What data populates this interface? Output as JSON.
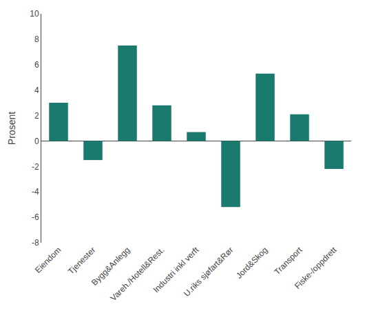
{
  "chart_data": {
    "type": "bar",
    "ylabel": "Prosent",
    "categories": [
      "Eiendom",
      "Tjenester",
      "Bygg&Anlegg",
      "Vareh./Hotell&Rest.",
      "Industri inkl verft",
      "U.riks sjøfart&Rør",
      "Jord&Skog",
      "Transport",
      "Fiske-/oppdrett"
    ],
    "values": [
      3.0,
      -1.5,
      7.5,
      2.8,
      0.7,
      -5.2,
      5.3,
      2.1,
      -2.2
    ],
    "color": "#1a7a6e",
    "ylim": [
      -8,
      10
    ],
    "yticks": [
      -8,
      -6,
      -4,
      -2,
      0,
      2,
      4,
      6,
      8,
      10
    ],
    "grid": false
  }
}
